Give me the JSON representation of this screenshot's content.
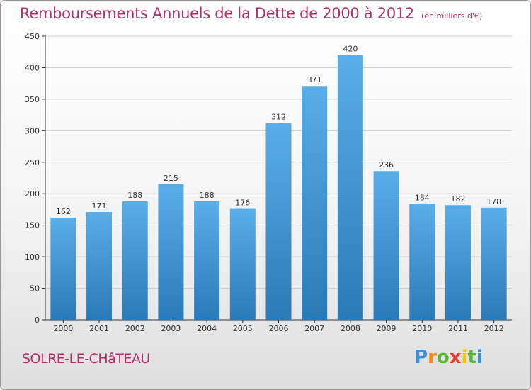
{
  "chart_data": {
    "type": "bar",
    "title": "Remboursements Annuels de la Dette de 2000 à 2012",
    "subtitle": "(en milliers d'€)",
    "categories": [
      "2000",
      "2001",
      "2002",
      "2003",
      "2004",
      "2005",
      "2006",
      "2007",
      "2008",
      "2009",
      "2010",
      "2011",
      "2012"
    ],
    "values": [
      162,
      171,
      188,
      215,
      188,
      176,
      312,
      371,
      420,
      236,
      184,
      182,
      178
    ],
    "ylim": [
      0,
      450
    ],
    "yticks": [
      0,
      50,
      100,
      150,
      200,
      250,
      300,
      350,
      400,
      450
    ],
    "grid": true,
    "colors": {
      "bar_top": "#5aaee8",
      "bar_bottom": "#2a7ab8",
      "title": "#b0306a",
      "grid": "#cfcfcf"
    }
  },
  "footer": {
    "town": "SOLRE-LE-CHâTEAU",
    "logo_letters": [
      "P",
      "r",
      "o",
      "x",
      "i",
      "t",
      "i"
    ],
    "logo_colors": [
      "#3c8fd6",
      "#f08a1d",
      "#5bb53a",
      "#e63b2e",
      "#f2c21b",
      "#5bb53a",
      "#3c8fd6"
    ]
  }
}
